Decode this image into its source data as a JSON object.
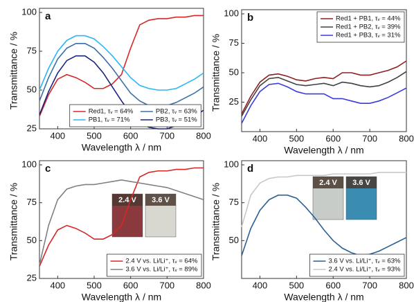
{
  "chart_data": [
    {
      "type": "line",
      "label": "a",
      "xlabel": "Wavelength λ / nm",
      "ylabel": "Transmittance / %",
      "x": [
        350,
        375,
        400,
        425,
        450,
        475,
        500,
        525,
        550,
        575,
        600,
        625,
        650,
        675,
        700,
        725,
        750,
        775,
        800
      ],
      "xlim": [
        350,
        800
      ],
      "xticks": [
        400,
        500,
        600,
        700,
        800
      ],
      "ylim": [
        25,
        100
      ],
      "yticks": [
        25,
        50,
        75,
        100
      ],
      "legend": "bottom",
      "legend_columns": 2,
      "series": [
        {
          "name": "Red1, τᵥ = 64%",
          "color": "#d62728",
          "values": [
            33,
            47,
            57,
            60,
            58,
            55,
            51,
            51,
            54,
            60,
            77,
            92,
            95,
            96,
            96,
            97,
            97,
            98,
            98
          ]
        },
        {
          "name": "PB1, τᵥ = 71%",
          "color": "#29b6f6",
          "values": [
            50,
            64,
            75,
            82,
            85,
            85,
            83,
            78,
            72,
            65,
            58,
            53,
            51,
            50,
            50,
            51,
            54,
            57,
            61
          ]
        },
        {
          "name": "PB2, τᵥ = 63%",
          "color": "#3a6fa5",
          "values": [
            43,
            58,
            70,
            77,
            80,
            80,
            77,
            71,
            64,
            56,
            48,
            43,
            40,
            40,
            40,
            42,
            45,
            48,
            52
          ]
        },
        {
          "name": "PB3, τᵥ = 51%",
          "color": "#1a237e",
          "values": [
            34,
            49,
            61,
            69,
            72,
            72,
            68,
            61,
            52,
            43,
            35,
            29,
            26,
            25,
            25,
            27,
            30,
            33,
            37
          ]
        }
      ]
    },
    {
      "type": "line",
      "label": "b",
      "xlabel": "Wavelength λ / nm",
      "ylabel": "Transmittance / %",
      "x": [
        350,
        375,
        400,
        425,
        450,
        475,
        500,
        525,
        550,
        575,
        600,
        625,
        650,
        675,
        700,
        725,
        750,
        775,
        800
      ],
      "xlim": [
        350,
        800
      ],
      "xticks": [
        400,
        500,
        600,
        700,
        800
      ],
      "ylim": [
        0,
        100
      ],
      "yticks": [
        25,
        50,
        75,
        100
      ],
      "legend": "top-right",
      "legend_columns": 1,
      "series": [
        {
          "name": "Red1 + PB1, τᵥ = 44%",
          "color": "#8b2020",
          "values": [
            15,
            30,
            42,
            48,
            49,
            47,
            44,
            43,
            45,
            46,
            45,
            50,
            50,
            48,
            48,
            50,
            52,
            55,
            60
          ]
        },
        {
          "name": "Red1 + PB2, τᵥ = 39%",
          "color": "#404040",
          "values": [
            13,
            27,
            39,
            45,
            46,
            43,
            40,
            39,
            40,
            41,
            39,
            42,
            41,
            39,
            38,
            39,
            42,
            46,
            51
          ]
        },
        {
          "name": "Red1 + PB3, τᵥ = 31%",
          "color": "#3a3adb",
          "values": [
            7,
            22,
            34,
            40,
            41,
            38,
            34,
            32,
            32,
            32,
            28,
            28,
            26,
            24,
            24,
            26,
            29,
            33,
            37
          ]
        }
      ]
    },
    {
      "type": "line",
      "label": "c",
      "xlabel": "Wavelength λ / nm",
      "ylabel": "Transmittance / %",
      "x": [
        350,
        375,
        400,
        425,
        450,
        475,
        500,
        525,
        550,
        575,
        600,
        625,
        650,
        675,
        700,
        725,
        750,
        775,
        800
      ],
      "xlim": [
        350,
        800
      ],
      "xticks": [
        400,
        500,
        600,
        700,
        800
      ],
      "ylim": [
        25,
        100
      ],
      "yticks": [
        25,
        50,
        75,
        100
      ],
      "legend": "bottom-right",
      "legend_columns": 1,
      "annotations": [
        {
          "text": "2.4 V",
          "color": "#8a3a3c"
        },
        {
          "text": "3.6 V",
          "color": "#d8d8d0"
        }
      ],
      "series": [
        {
          "name": "2.4 V vs. Li/Li⁺, τᵥ = 64%",
          "color": "#d62728",
          "values": [
            33,
            47,
            57,
            60,
            58,
            55,
            51,
            51,
            54,
            60,
            77,
            92,
            95,
            96,
            96,
            97,
            97,
            98,
            98
          ]
        },
        {
          "name": "3.6 V vs. Li/Li⁺, τᵥ = 89%",
          "color": "#808080",
          "values": [
            34,
            60,
            77,
            84,
            86,
            87,
            87,
            88,
            89,
            90,
            89,
            88,
            87,
            86,
            85,
            83,
            81,
            79,
            77
          ]
        }
      ]
    },
    {
      "type": "line",
      "label": "d",
      "xlabel": "Wavelength λ / nm",
      "ylabel": "Transmittance / %",
      "x": [
        350,
        375,
        400,
        425,
        450,
        475,
        500,
        525,
        550,
        575,
        600,
        625,
        650,
        675,
        700,
        725,
        750,
        775,
        800
      ],
      "xlim": [
        350,
        800
      ],
      "xticks": [
        400,
        500,
        600,
        700,
        800
      ],
      "ylim": [
        25,
        100
      ],
      "yticks": [
        50,
        75,
        100
      ],
      "legend": "bottom-right",
      "legend_columns": 1,
      "annotations": [
        {
          "text": "2.4 V",
          "color": "#c8ccc8"
        },
        {
          "text": "3.6 V",
          "color": "#3a8db0"
        }
      ],
      "series": [
        {
          "name": "3.6 V vs. Li/Li⁺, τᵥ = 63%",
          "color": "#2b5f96",
          "values": [
            40,
            58,
            70,
            77,
            80,
            80,
            78,
            72,
            65,
            57,
            50,
            45,
            42,
            40,
            41,
            43,
            46,
            49,
            52
          ]
        },
        {
          "name": "2.4 V vs. Li/Li⁺, τᵥ = 93%",
          "color": "#c8c8c8",
          "values": [
            59,
            80,
            88,
            91,
            92,
            92,
            93,
            93,
            93,
            93,
            94,
            94,
            94,
            94,
            94,
            95,
            95,
            95,
            95
          ]
        }
      ]
    }
  ]
}
